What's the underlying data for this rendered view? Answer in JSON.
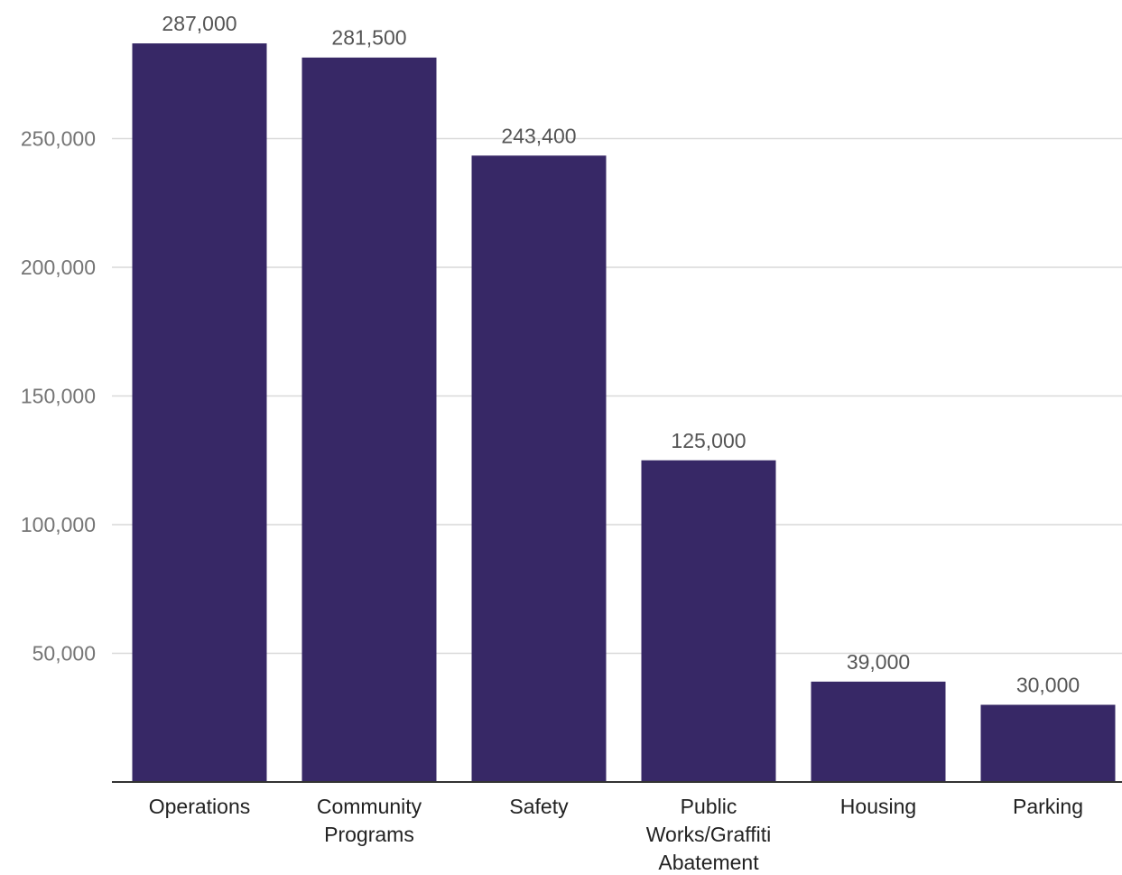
{
  "chart_data": {
    "type": "bar",
    "categories": [
      [
        "Operations"
      ],
      [
        "Community",
        "Programs"
      ],
      [
        "Safety"
      ],
      [
        "Public",
        "Works/Graffiti",
        "Abatement"
      ],
      [
        "Housing"
      ],
      [
        "Parking"
      ]
    ],
    "values": [
      287000,
      281500,
      243400,
      125000,
      39000,
      30000
    ],
    "data_labels": [
      "287,000",
      "281,500",
      "243,400",
      "125,000",
      "39,000",
      "30,000"
    ],
    "y_ticks": [
      50000,
      100000,
      150000,
      200000,
      250000
    ],
    "y_tick_labels": [
      "50,000",
      "100,000",
      "150,000",
      "200,000",
      "250,000"
    ],
    "ylim": [
      0,
      300000
    ],
    "grid": true,
    "legend": "none",
    "title": "",
    "xlabel": "",
    "ylabel": "",
    "bar_color": "#372866",
    "grid_color": "#d9d9d9",
    "axis_color": "#333333"
  }
}
